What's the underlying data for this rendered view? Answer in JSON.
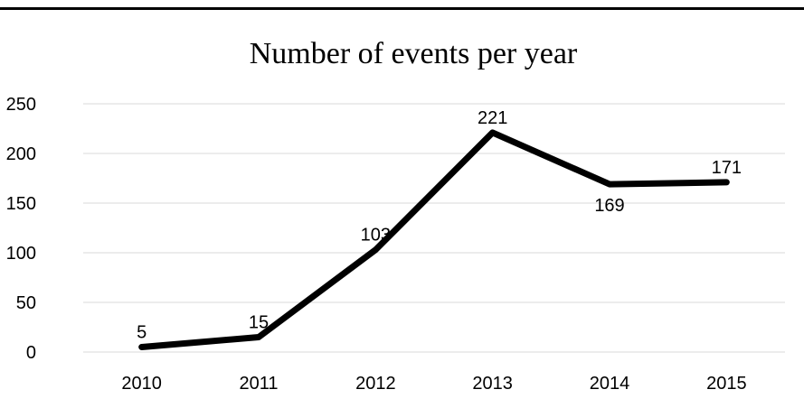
{
  "chart_data": {
    "type": "line",
    "title": "Number of events per year",
    "xlabel": "",
    "ylabel": "",
    "categories": [
      "2010",
      "2011",
      "2012",
      "2013",
      "2014",
      "2015"
    ],
    "series": [
      {
        "values": [
          5,
          15,
          103,
          221,
          169,
          171
        ]
      }
    ],
    "ylim": [
      0,
      250
    ],
    "yticks": [
      0,
      50,
      100,
      150,
      200,
      250
    ],
    "grid": true,
    "data_labels": true,
    "line_color": "#000000"
  }
}
